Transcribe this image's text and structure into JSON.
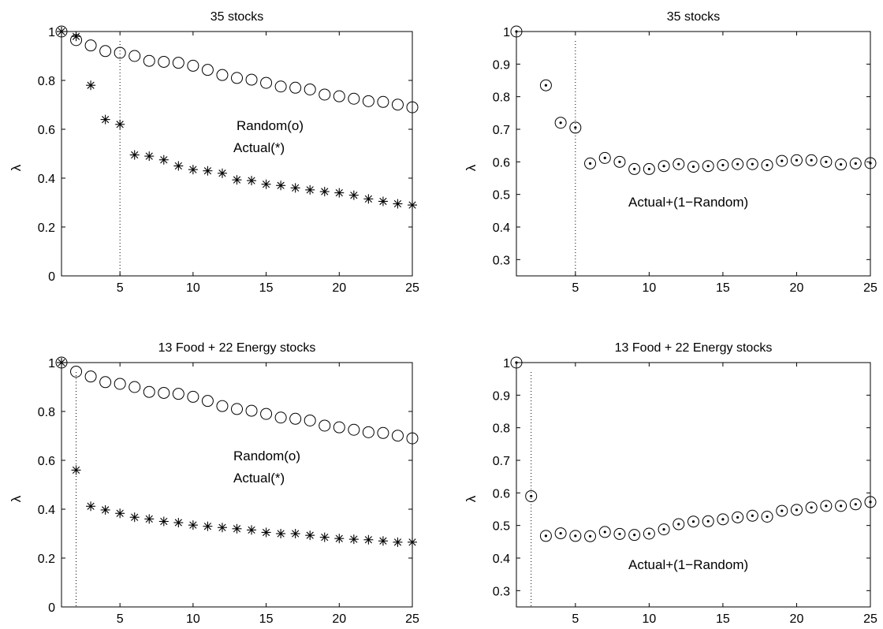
{
  "chart_data": [
    {
      "type": "scatter",
      "title": "35 stocks",
      "ylabel": "λ",
      "xlim": [
        1,
        25
      ],
      "ylim": [
        0,
        1
      ],
      "xticks": [
        "5",
        "10",
        "15",
        "20",
        "25"
      ],
      "yticks": [
        "0",
        "0.2",
        "0.4",
        "0.6",
        "0.8",
        "1"
      ],
      "vline_x": 5,
      "annotations": [
        "Random(o)",
        "Actual(*)"
      ],
      "series": [
        {
          "marker": "circle",
          "x": [
            1,
            2,
            3,
            4,
            5,
            6,
            7,
            8,
            9,
            10,
            11,
            12,
            13,
            14,
            15,
            16,
            17,
            18,
            19,
            20,
            21,
            22,
            23,
            24,
            25
          ],
          "values": [
            1.0,
            0.965,
            0.943,
            0.92,
            0.913,
            0.9,
            0.88,
            0.876,
            0.872,
            0.86,
            0.843,
            0.822,
            0.81,
            0.803,
            0.79,
            0.775,
            0.77,
            0.763,
            0.742,
            0.735,
            0.725,
            0.715,
            0.712,
            0.701,
            0.69
          ]
        },
        {
          "marker": "asterisk",
          "x": [
            1,
            2,
            3,
            4,
            5,
            6,
            7,
            8,
            9,
            10,
            11,
            12,
            13,
            14,
            15,
            16,
            17,
            18,
            19,
            20,
            21,
            22,
            23,
            24,
            25
          ],
          "values": [
            1.0,
            0.98,
            0.78,
            0.64,
            0.62,
            0.495,
            0.49,
            0.475,
            0.45,
            0.435,
            0.43,
            0.42,
            0.393,
            0.39,
            0.375,
            0.37,
            0.36,
            0.352,
            0.345,
            0.34,
            0.33,
            0.315,
            0.305,
            0.295,
            0.29
          ]
        }
      ]
    },
    {
      "type": "scatter",
      "title": "35 stocks",
      "ylabel": "λ",
      "xlim": [
        1,
        25
      ],
      "ylim": [
        0.25,
        1
      ],
      "xticks": [
        "5",
        "10",
        "15",
        "20",
        "25"
      ],
      "yticks": [
        "0.3",
        "0.4",
        "0.5",
        "0.6",
        "0.7",
        "0.8",
        "0.9",
        "1"
      ],
      "vline_x": 5,
      "annotations": [
        "Actual+(1−Random)"
      ],
      "series": [
        {
          "marker": "circle-dot",
          "x": [
            1,
            3,
            4,
            5,
            6,
            7,
            8,
            9,
            10,
            11,
            12,
            13,
            14,
            15,
            16,
            17,
            18,
            19,
            20,
            21,
            22,
            23,
            24,
            25
          ],
          "values": [
            1.0,
            0.835,
            0.72,
            0.705,
            0.595,
            0.612,
            0.6,
            0.578,
            0.578,
            0.587,
            0.593,
            0.585,
            0.587,
            0.59,
            0.593,
            0.593,
            0.59,
            0.603,
            0.605,
            0.605,
            0.6,
            0.592,
            0.595,
            0.596
          ]
        }
      ]
    },
    {
      "type": "scatter",
      "title": "13 Food + 22 Energy stocks",
      "ylabel": "λ",
      "xlim": [
        1,
        25
      ],
      "ylim": [
        0,
        1
      ],
      "xticks": [
        "5",
        "10",
        "15",
        "20",
        "25"
      ],
      "yticks": [
        "0",
        "0.2",
        "0.4",
        "0.6",
        "0.8",
        "1"
      ],
      "vline_x": 2,
      "annotations": [
        "Random(o)",
        "Actual(*)"
      ],
      "series": [
        {
          "marker": "circle",
          "x": [
            1,
            2,
            3,
            4,
            5,
            6,
            7,
            8,
            9,
            10,
            11,
            12,
            13,
            14,
            15,
            16,
            17,
            18,
            19,
            20,
            21,
            22,
            23,
            24,
            25
          ],
          "values": [
            1.0,
            0.963,
            0.943,
            0.92,
            0.913,
            0.9,
            0.88,
            0.876,
            0.872,
            0.86,
            0.843,
            0.822,
            0.81,
            0.803,
            0.79,
            0.775,
            0.77,
            0.763,
            0.742,
            0.735,
            0.725,
            0.715,
            0.712,
            0.701,
            0.69
          ]
        },
        {
          "marker": "asterisk",
          "x": [
            1,
            2,
            3,
            4,
            5,
            6,
            7,
            8,
            9,
            10,
            11,
            12,
            13,
            14,
            15,
            16,
            17,
            18,
            19,
            20,
            21,
            22,
            23,
            24,
            25
          ],
          "values": [
            1.0,
            0.56,
            0.412,
            0.397,
            0.383,
            0.367,
            0.36,
            0.35,
            0.345,
            0.335,
            0.33,
            0.325,
            0.32,
            0.315,
            0.305,
            0.3,
            0.3,
            0.293,
            0.285,
            0.28,
            0.277,
            0.275,
            0.27,
            0.265,
            0.265
          ]
        }
      ]
    },
    {
      "type": "scatter",
      "title": "13 Food + 22 Energy stocks",
      "ylabel": "λ",
      "xlim": [
        1,
        25
      ],
      "ylim": [
        0.25,
        1
      ],
      "xticks": [
        "5",
        "10",
        "15",
        "20",
        "25"
      ],
      "yticks": [
        "0.3",
        "0.4",
        "0.5",
        "0.6",
        "0.7",
        "0.8",
        "0.9",
        "1"
      ],
      "vline_x": 2,
      "annotations": [
        "Actual+(1−Random)"
      ],
      "series": [
        {
          "marker": "circle-dot",
          "x": [
            1,
            2,
            3,
            4,
            5,
            6,
            7,
            8,
            9,
            10,
            11,
            12,
            13,
            14,
            15,
            16,
            17,
            18,
            19,
            20,
            21,
            22,
            23,
            24,
            25
          ],
          "values": [
            1.0,
            0.59,
            0.468,
            0.476,
            0.468,
            0.467,
            0.48,
            0.474,
            0.471,
            0.475,
            0.488,
            0.504,
            0.512,
            0.513,
            0.519,
            0.525,
            0.53,
            0.527,
            0.545,
            0.548,
            0.555,
            0.56,
            0.56,
            0.565,
            0.572
          ]
        }
      ]
    }
  ]
}
